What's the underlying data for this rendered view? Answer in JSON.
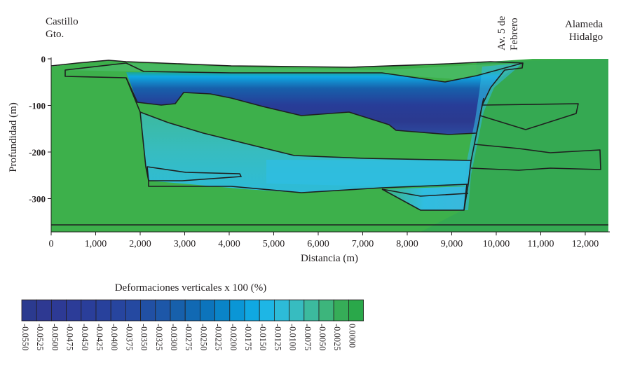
{
  "labels": {
    "castillo": [
      "Castillo",
      "Gto."
    ],
    "av5": [
      "Av. 5 de",
      "Febrero"
    ],
    "alameda": [
      "Alameda",
      "Hidalgo"
    ]
  },
  "axes": {
    "ylabel": "Profundidad (m)",
    "xlabel": "Distancia (m)",
    "yticks": [
      "0",
      "-100",
      "-200",
      "-300"
    ],
    "xticks": [
      "0",
      "1,000",
      "2,000",
      "3,000",
      "4,000",
      "5,000",
      "6,000",
      "7,000",
      "8,000",
      "9,000",
      "10,000",
      "11,000",
      "12,000"
    ]
  },
  "legend": {
    "title": "Deformaciones verticales x 100 (%)",
    "values": [
      "-0.0550",
      "-0.0525",
      "-0.0500",
      "-0.0475",
      "-0.0450",
      "-0.0425",
      "-0.0400",
      "-0.0375",
      "-0.0350",
      "-0.0325",
      "-0.0300",
      "-0.0275",
      "-0.0250",
      "-0.0225",
      "-0.0200",
      "-0.0175",
      "-0.0150",
      "-0.0125",
      "-0.0100",
      "-0.0075",
      "-0.0050",
      "-0.0025",
      "0.0000"
    ],
    "colors": [
      "#2b3a8f",
      "#2e3992",
      "#2d3a95",
      "#2c3c98",
      "#2a3e9a",
      "#28419c",
      "#27459f",
      "#2549a1",
      "#2150a4",
      "#1d57a8",
      "#1760ab",
      "#1169b3",
      "#0c74bc",
      "#0a84c8",
      "#0a96d6",
      "#10a8e2",
      "#1eb6e5",
      "#2dbbd8",
      "#37bcc0",
      "#3cba9e",
      "#3db57c",
      "#36ad58",
      "#2aa84a"
    ]
  },
  "colors": {
    "background_green": "#3db04b",
    "accent_green": "#34a853",
    "deep_blue": "#253896",
    "mid_blue": "#1e9fd8",
    "light_blue": "#3ab8dc",
    "outline": "#1f1f1f"
  }
}
